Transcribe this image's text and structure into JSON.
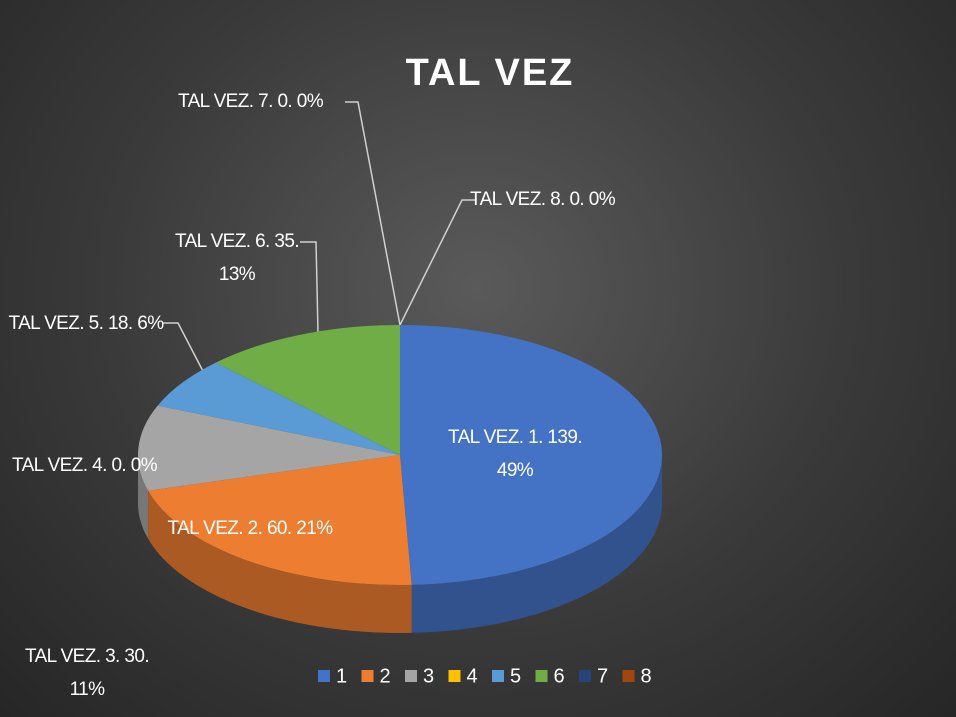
{
  "chart_data": {
    "type": "pie3d",
    "title": "TAL VEZ",
    "series_name": "TAL VEZ",
    "categories": [
      "1",
      "2",
      "3",
      "4",
      "5",
      "6",
      "7",
      "8"
    ],
    "values": [
      139,
      60,
      30,
      0,
      18,
      35,
      0,
      0
    ],
    "value_labels": [
      "TAL VEZ. 1. 139. 49%",
      "TAL VEZ. 2. 60. 21%",
      "TAL VEZ. 3. 30. 11%",
      "TAL VEZ. 4. 0. 0%",
      "TAL VEZ. 5. 18. 6%",
      "TAL VEZ. 6. 35. 13%",
      "TAL VEZ. 7. 0. 0%",
      "TAL VEZ. 8. 0. 0%"
    ],
    "colors": [
      "#4472c4",
      "#ed7d31",
      "#a5a5a5",
      "#ffc000",
      "#5b9bd5",
      "#70ad47",
      "#264478",
      "#9e480e"
    ],
    "legend": "bottom"
  }
}
